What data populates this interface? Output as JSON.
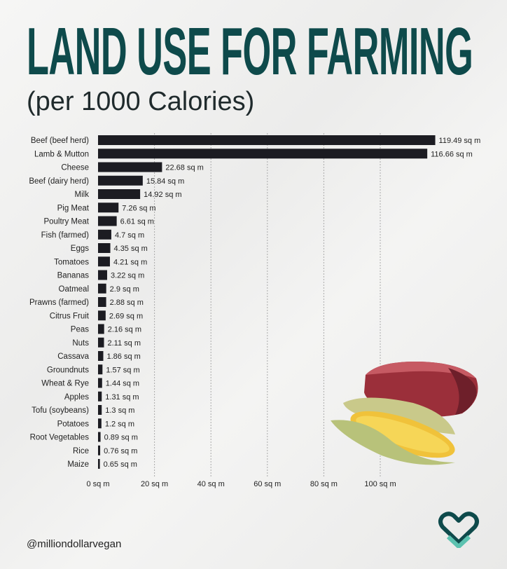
{
  "header": {
    "title": "LAND USE FOR FARMING",
    "subtitle": "(per 1000 Calories)"
  },
  "footer": {
    "handle": "@milliondollarvegan"
  },
  "colors": {
    "bar": "#1c1c22",
    "title": "#0e4a4b",
    "logo": "#0e4a4b",
    "logo_accent": "#5cc2b0"
  },
  "chart_data": {
    "type": "bar",
    "orientation": "horizontal",
    "title": "LAND USE FOR FARMING",
    "subtitle": "(per 1000 Calories)",
    "unit_suffix": " sq m",
    "categories": [
      "Beef (beef herd)",
      "Lamb & Mutton",
      "Cheese",
      "Beef (dairy herd)",
      "Milk",
      "Pig Meat",
      "Poultry Meat",
      "Fish (farmed)",
      "Eggs",
      "Tomatoes",
      "Bananas",
      "Oatmeal",
      "Prawns (farmed)",
      "Citrus Fruit",
      "Peas",
      "Nuts",
      "Cassava",
      "Groundnuts",
      "Wheat & Rye",
      "Apples",
      "Tofu (soybeans)",
      "Potatoes",
      "Root Vegetables",
      "Rice",
      "Maize"
    ],
    "values": [
      119.49,
      116.66,
      22.68,
      15.84,
      14.92,
      7.26,
      6.61,
      4.7,
      4.35,
      4.21,
      3.22,
      2.9,
      2.88,
      2.69,
      2.16,
      2.11,
      1.86,
      1.57,
      1.44,
      1.31,
      1.3,
      1.2,
      0.89,
      0.76,
      0.65
    ],
    "value_labels": [
      "119.49 sq m",
      "116.66 sq m",
      "22.68 sq m",
      "15.84 sq m",
      "14.92 sq m",
      "7.26 sq m",
      "6.61 sq m",
      "4.7 sq m",
      "4.35 sq m",
      "4.21 sq m",
      "3.22 sq m",
      "2.9 sq m",
      "2.88 sq m",
      "2.69 sq m",
      "2.16 sq m",
      "2.11 sq m",
      "1.86 sq m",
      "1.57 sq m",
      "1.44 sq m",
      "1.31 sq m",
      "1.3 sq m",
      "1.2 sq m",
      "0.89 sq m",
      "0.76 sq m",
      "0.65 sq m"
    ],
    "xticks": [
      0,
      20,
      40,
      60,
      80,
      100
    ],
    "xtick_labels": [
      "0 sq m",
      "20 sq m",
      "40 sq m",
      "60 sq m",
      "80 sq m",
      "100 sq m"
    ],
    "xlim": [
      0,
      120
    ],
    "grid": "vertical dotted",
    "xlabel": "",
    "ylabel": ""
  }
}
